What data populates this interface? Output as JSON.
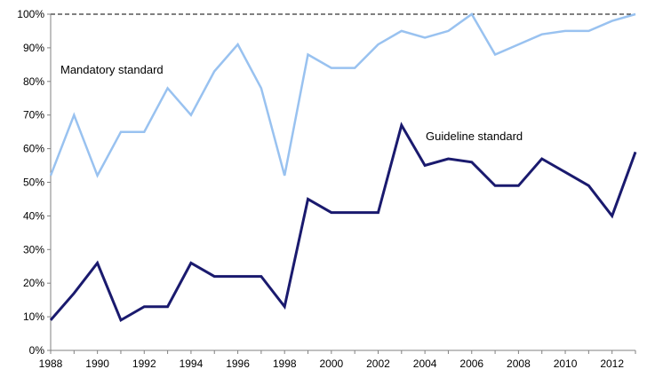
{
  "chart_data": {
    "type": "line",
    "title": "",
    "xlabel": "",
    "ylabel": "",
    "x": [
      1988,
      1989,
      1990,
      1991,
      1992,
      1993,
      1994,
      1995,
      1996,
      1997,
      1998,
      1999,
      2000,
      2001,
      2002,
      2003,
      2004,
      2005,
      2006,
      2007,
      2008,
      2009,
      2010,
      2011,
      2012,
      2013
    ],
    "xlim": [
      1988,
      2013
    ],
    "ylim": [
      0,
      100
    ],
    "grid": false,
    "legend": "none",
    "reference_line": {
      "y": 100,
      "style": "dashed"
    },
    "x_tick_labels": [
      "1988",
      "1990",
      "1992",
      "1994",
      "1996",
      "1998",
      "2000",
      "2002",
      "2004",
      "2006",
      "2008",
      "2010",
      "2012"
    ],
    "y_tick_labels": [
      "0%",
      "10%",
      "20%",
      "30%",
      "40%",
      "50%",
      "60%",
      "70%",
      "80%",
      "90%",
      "100%"
    ],
    "series": [
      {
        "name": "Mandatory standard",
        "color": "#99c2f0",
        "values": [
          52,
          70,
          52,
          65,
          65,
          78,
          70,
          83,
          91,
          78,
          52,
          88,
          84,
          84,
          91,
          95,
          93,
          95,
          100,
          88,
          91,
          94,
          95,
          95,
          98,
          100
        ]
      },
      {
        "name": "Guideline standard",
        "color": "#1a1a6e",
        "values": [
          9,
          17,
          26,
          9,
          13,
          13,
          26,
          22,
          22,
          22,
          13,
          45,
          41,
          41,
          41,
          67,
          55,
          57,
          56,
          49,
          49,
          57,
          53,
          49,
          40,
          59
        ]
      }
    ]
  }
}
